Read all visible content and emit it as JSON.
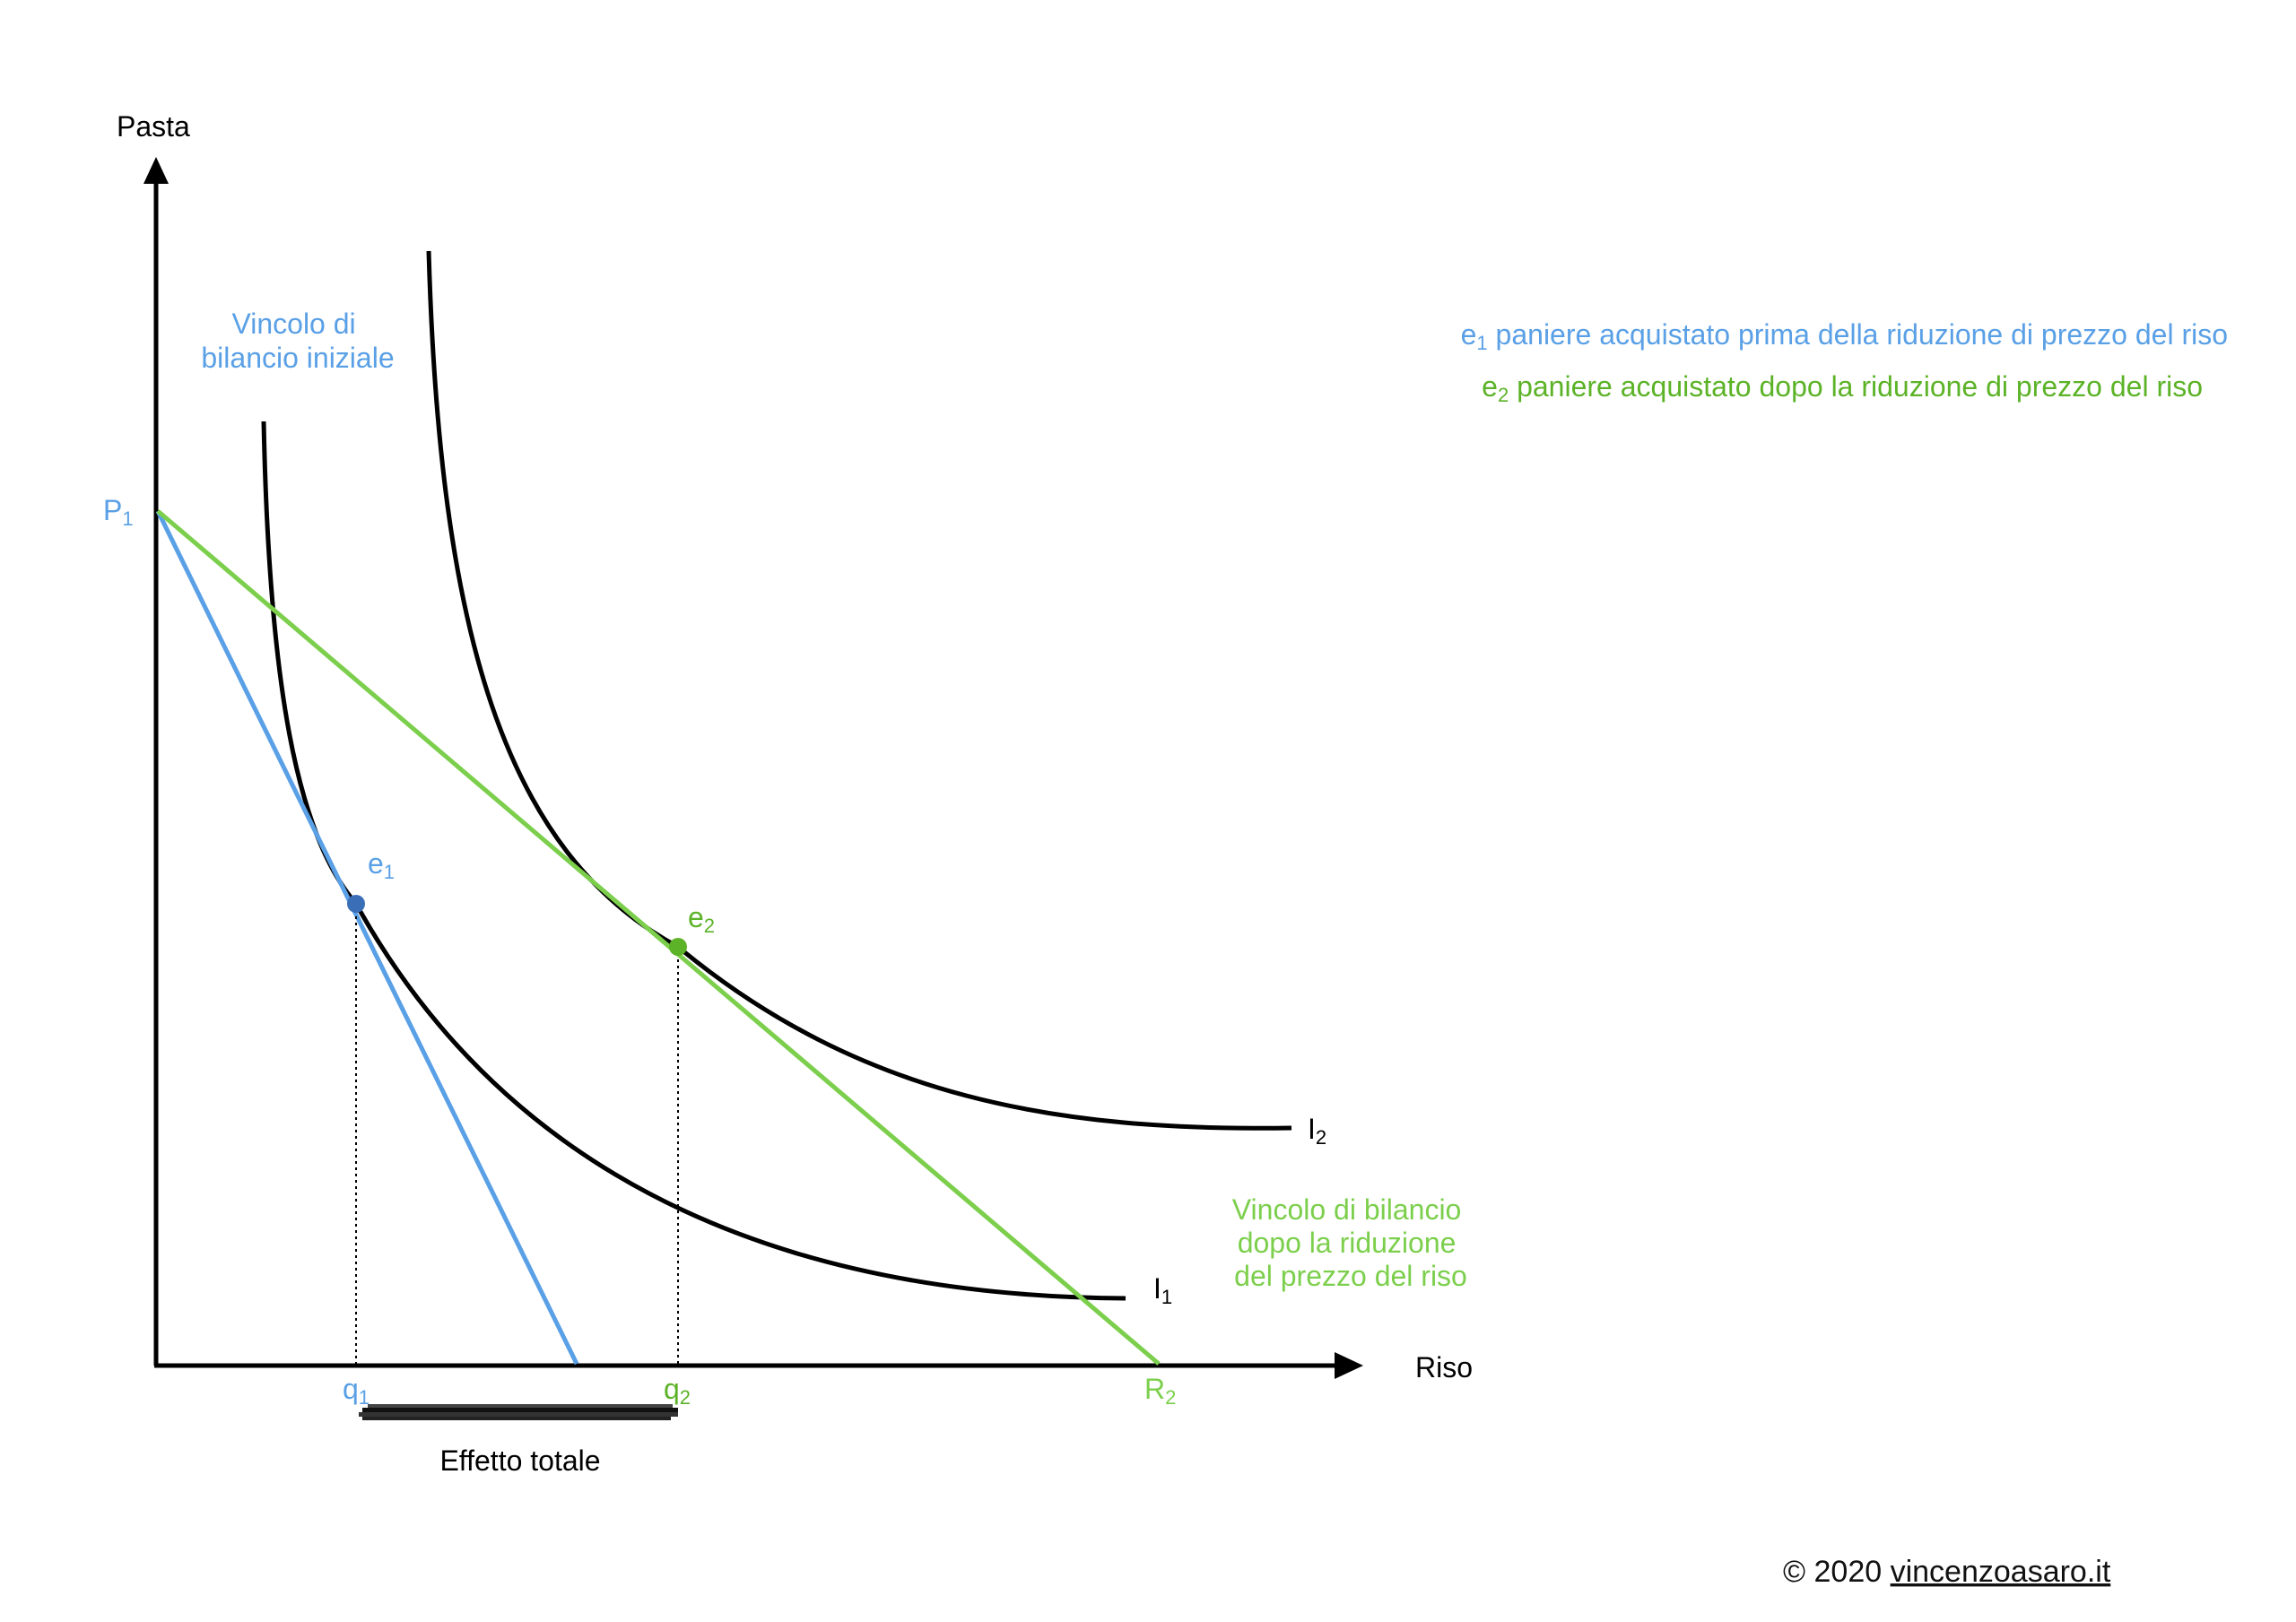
{
  "axes": {
    "y_label": "Pasta",
    "x_label": "Riso"
  },
  "points": {
    "P1": {
      "base": "P",
      "sub": "1"
    },
    "R2": {
      "base": "R",
      "sub": "2"
    },
    "e1": {
      "base": "e",
      "sub": "1"
    },
    "e2": {
      "base": "e",
      "sub": "2"
    },
    "q1": {
      "base": "q",
      "sub": "1"
    },
    "q2": {
      "base": "q",
      "sub": "2"
    }
  },
  "curves": {
    "I1": {
      "base": "I",
      "sub": "1"
    },
    "I2": {
      "base": "I",
      "sub": "2"
    }
  },
  "budget_labels": {
    "initial": [
      "Vincolo di",
      "bilancio iniziale"
    ],
    "after": [
      "Vincolo di bilancio",
      "dopo la riduzione",
      "del prezzo del riso"
    ]
  },
  "legend": {
    "e1": {
      "base": "e",
      "sub": "1",
      "text": " paniere acquistato prima della riduzione di prezzo del riso"
    },
    "e2": {
      "base": "e",
      "sub": "2",
      "text": " paniere acquistato dopo la riduzione di prezzo del riso"
    }
  },
  "effect_label": "Effetto totale",
  "credit": {
    "prefix": "© 2020 ",
    "link": "vincenzoasaro.it"
  },
  "colors": {
    "initial_budget": "#5aa0e6",
    "new_budget": "#7ccf4c",
    "curves": "#000000",
    "e1_point": "#3a6fb8",
    "e2_point": "#5cb327"
  }
}
